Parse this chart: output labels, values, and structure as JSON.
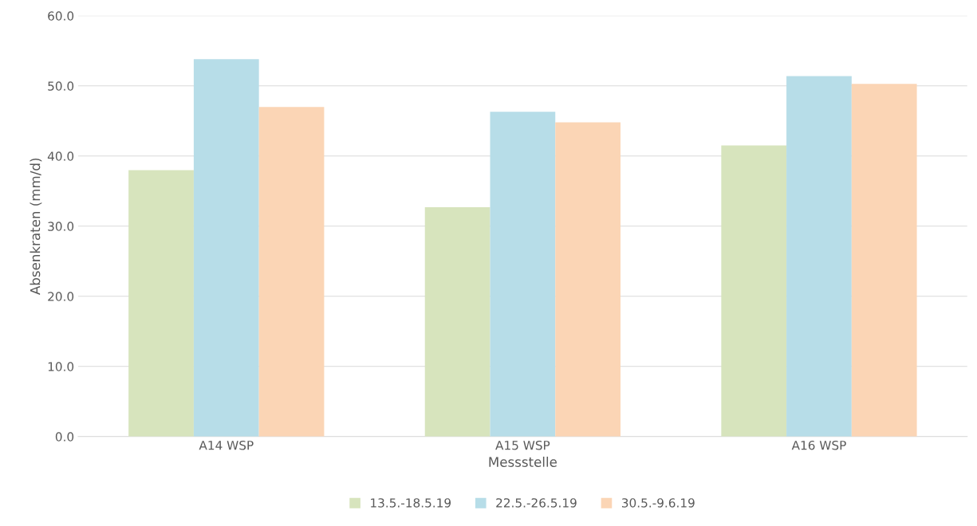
{
  "chart_data": {
    "type": "bar",
    "xlabel": "Messstelle",
    "ylabel": "Absenkraten (mm/d)",
    "categories": [
      "A14 WSP",
      "A15 WSP",
      "A16 WSP"
    ],
    "series": [
      {
        "name": "13.5.-18.5.19",
        "color": "#d7e4bd",
        "values": [
          38.0,
          32.7,
          41.5
        ]
      },
      {
        "name": "22.5.-26.5.19",
        "color": "#b7dde8",
        "values": [
          53.8,
          46.3,
          51.4
        ]
      },
      {
        "name": "30.5.-9.6.19",
        "color": "#fbd5b5",
        "values": [
          47.0,
          44.8,
          50.3
        ]
      }
    ],
    "ylim": [
      0,
      60
    ],
    "yticks": [
      {
        "value": 0,
        "label": "0.0"
      },
      {
        "value": 10,
        "label": "10.0"
      },
      {
        "value": 20,
        "label": "20.0"
      },
      {
        "value": 30,
        "label": "30.0"
      },
      {
        "value": 40,
        "label": "40.0"
      },
      {
        "value": 50,
        "label": "50.0"
      },
      {
        "value": 60,
        "label": "60.0"
      }
    ],
    "grid": "y",
    "legend": "bottom"
  }
}
